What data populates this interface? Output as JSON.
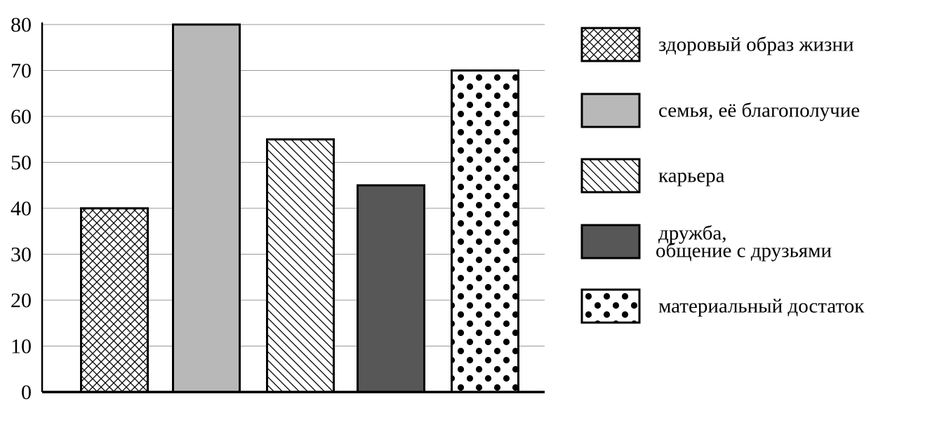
{
  "chart_data": {
    "type": "bar",
    "ylim": [
      0,
      80
    ],
    "yticks": [
      "0",
      "10",
      "20",
      "30",
      "40",
      "50",
      "60",
      "70",
      "80"
    ],
    "grid": true,
    "legend_position": "right",
    "bars": [
      {
        "id": "health",
        "value": 40,
        "pattern": "crosshatch",
        "legend": [
          "здоровый образ жизни"
        ]
      },
      {
        "id": "family",
        "value": 80,
        "pattern": "solid-light-gray",
        "legend": [
          "семья, её благополучие"
        ]
      },
      {
        "id": "career",
        "value": 55,
        "pattern": "diagonal-hatch",
        "legend": [
          "карьера"
        ]
      },
      {
        "id": "friendship",
        "value": 45,
        "pattern": "solid-dark-gray",
        "legend": [
          "дружба,",
          "общение с друзьями"
        ]
      },
      {
        "id": "wealth",
        "value": 70,
        "pattern": "dots",
        "legend": [
          "материальный достаток"
        ]
      }
    ],
    "colors": {
      "light_gray": "#b8b8b8",
      "dark_gray": "#575757",
      "grid": "#999999",
      "ink": "#000000"
    }
  }
}
